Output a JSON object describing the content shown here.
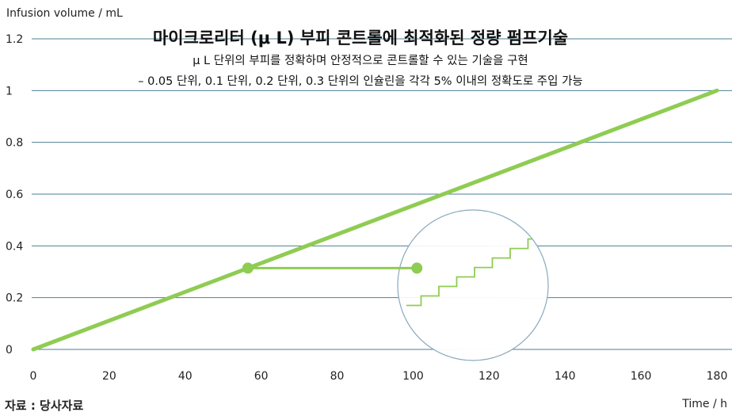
{
  "chart_data": {
    "type": "line",
    "title": "마이크로리터 (μ L) 부피 콘트롤에 최적화된 정량 펌프기술",
    "subtitle_lines": [
      "μ L 단위의 부피를 정확하며 안정적으로 콘트롤할 수 있는 기술을 구현",
      "– 0.05 단위, 0.1 단위, 0.2 단위, 0.3 단위의 인슐린을 각각 5% 이내의 정확도로 주입 가능"
    ],
    "ylabel": "Infusion volume / mL",
    "xlabel": "Time / h",
    "xlim": [
      0,
      180
    ],
    "ylim": [
      0,
      1.2
    ],
    "x_ticks": [
      "0",
      "20",
      "40",
      "60",
      "80",
      "100",
      "120",
      "140",
      "160",
      "180"
    ],
    "y_ticks": [
      "0",
      "0.2",
      "0.4",
      "0.6",
      "0.8",
      "1",
      "1.2"
    ],
    "grid": "horizontal",
    "series": [
      {
        "x": [
          0,
          180
        ],
        "y": [
          0,
          1.0
        ]
      }
    ],
    "callout": {
      "point": {
        "x": 56.5,
        "y": 0.314
      },
      "connector_end": {
        "x": 101,
        "y": 0.314
      },
      "zoom_inset": {
        "steps": 9,
        "y_from": 0.17,
        "y_to": 0.5
      }
    },
    "source": "자료 : 당사자료",
    "colors": {
      "line": "#8fcc52",
      "grid": "#4d7f95",
      "inset_border": "#8aaabd"
    }
  }
}
